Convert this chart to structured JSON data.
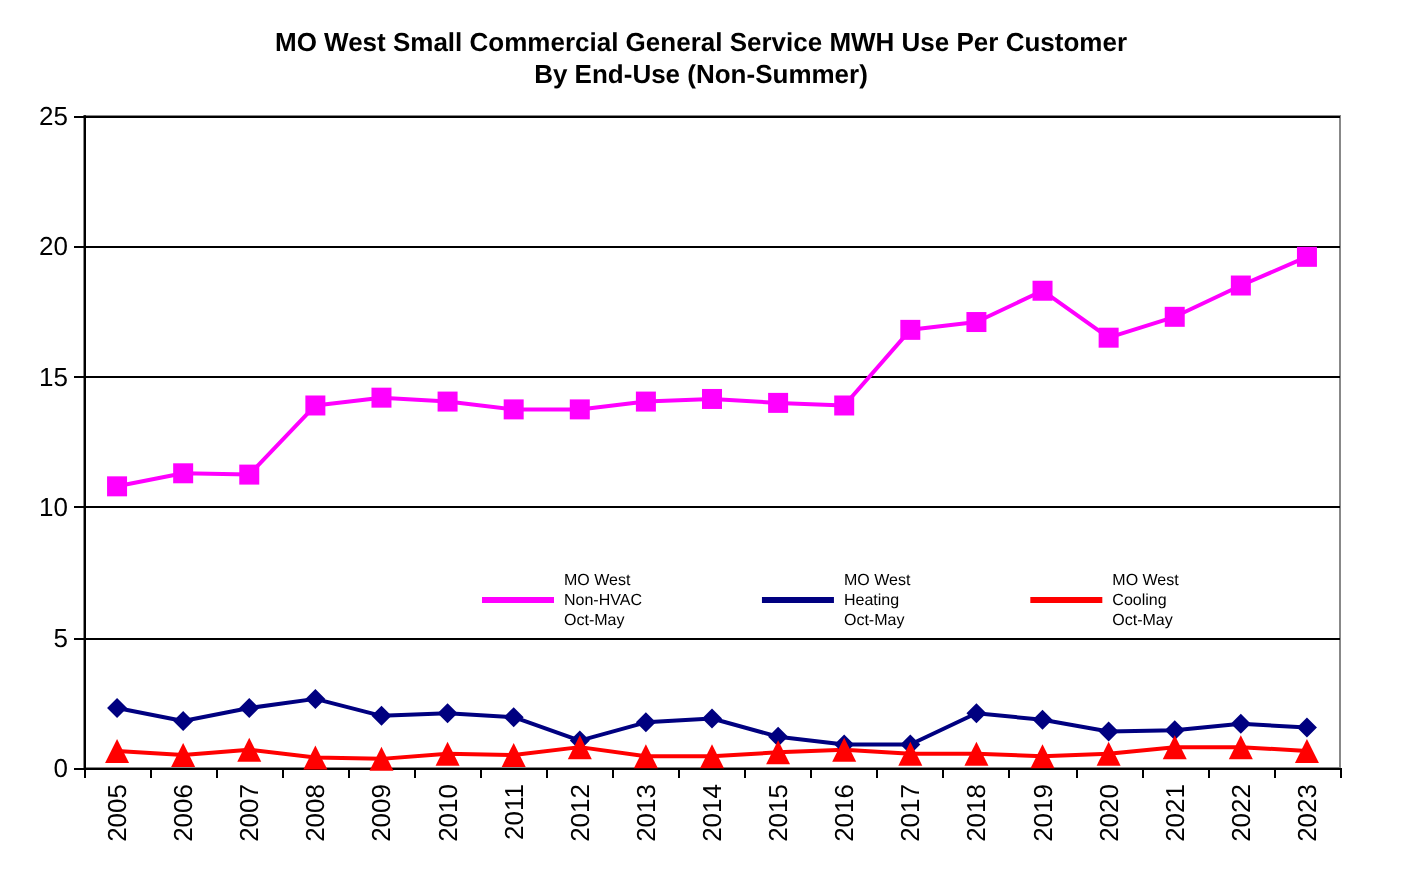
{
  "chart_data": {
    "type": "line",
    "title": "MO West Small Commercial General Service MWH Use Per Customer\nBy End-Use (Non-Summer)",
    "categories": [
      "2005",
      "2006",
      "2007",
      "2008",
      "2009",
      "2010",
      "2011",
      "2012",
      "2013",
      "2014",
      "2015",
      "2016",
      "2017",
      "2018",
      "2019",
      "2020",
      "2021",
      "2022",
      "2023"
    ],
    "series": [
      {
        "name": "MO West\nNon-HVAC\nOct-May",
        "color": "#ff00ff",
        "marker": "square",
        "values": [
          10.8,
          11.3,
          11.25,
          13.9,
          14.2,
          14.05,
          13.75,
          13.75,
          14.05,
          14.15,
          14.0,
          13.9,
          16.8,
          17.1,
          18.3,
          16.5,
          17.3,
          18.5,
          19.6
        ]
      },
      {
        "name": "MO West\nHeating\nOct-May",
        "color": "#000080",
        "marker": "diamond",
        "values": [
          2.3,
          1.8,
          2.3,
          2.65,
          2.0,
          2.1,
          1.95,
          1.05,
          1.75,
          1.9,
          1.2,
          0.9,
          0.9,
          2.1,
          1.85,
          1.4,
          1.45,
          1.7,
          1.55
        ]
      },
      {
        "name": "MO West\nCooling\nOct-May",
        "color": "#ff0000",
        "marker": "triangle",
        "values": [
          0.65,
          0.5,
          0.7,
          0.4,
          0.35,
          0.55,
          0.5,
          0.8,
          0.45,
          0.45,
          0.6,
          0.7,
          0.55,
          0.55,
          0.45,
          0.55,
          0.8,
          0.8,
          0.65
        ]
      }
    ],
    "ylim": [
      0,
      25
    ],
    "yticks": [
      0,
      5,
      10,
      15,
      20,
      25
    ],
    "grid": "y",
    "legend": "right"
  }
}
